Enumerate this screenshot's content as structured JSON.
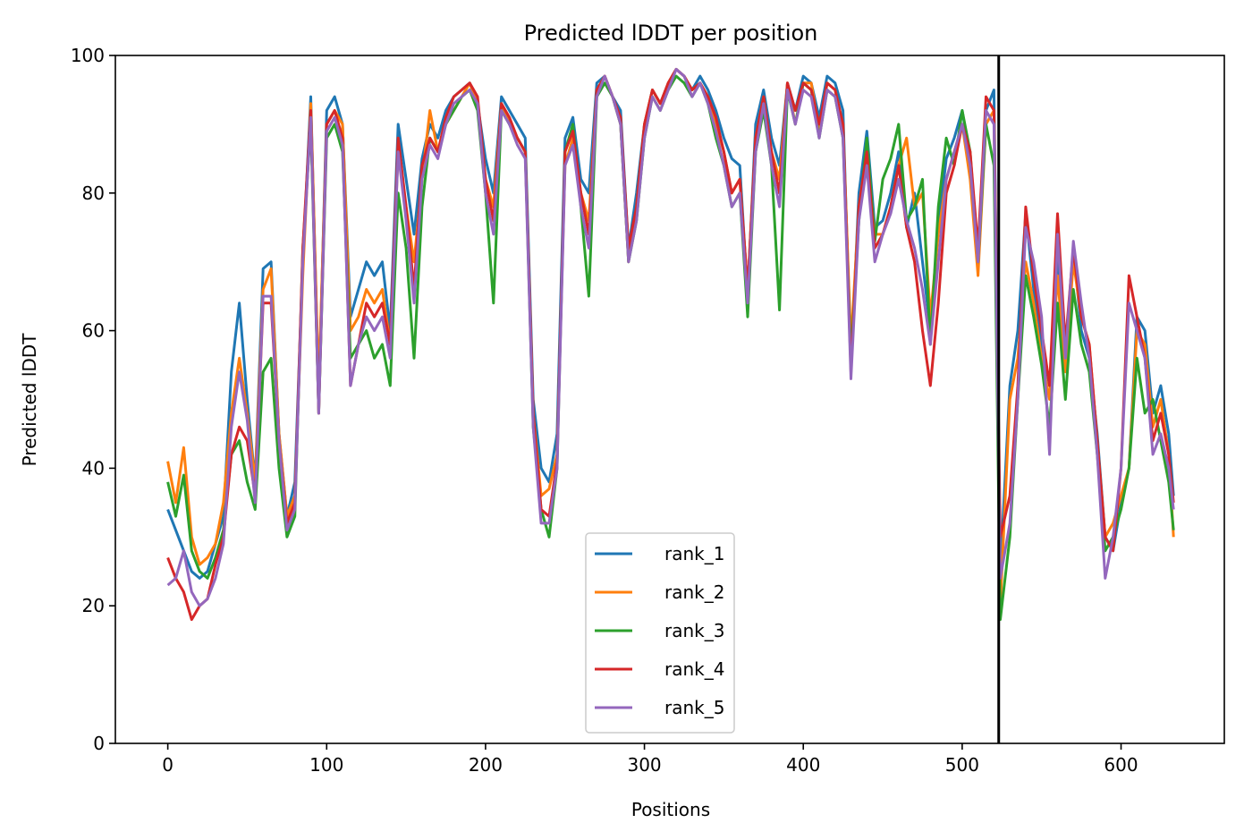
{
  "chart_data": {
    "type": "line",
    "title": "Predicted lDDT per position",
    "xlabel": "Positions",
    "ylabel": "Predicted lDDT",
    "xlim": [
      -33,
      665
    ],
    "ylim": [
      0,
      100
    ],
    "xticks": [
      0,
      100,
      200,
      300,
      400,
      500,
      600
    ],
    "yticks": [
      0,
      20,
      40,
      60,
      80,
      100
    ],
    "grid": false,
    "legend_position": "bottom-center",
    "vline": {
      "x": 523,
      "color": "#000000"
    },
    "x": [
      0,
      5,
      10,
      15,
      20,
      25,
      30,
      35,
      40,
      45,
      50,
      55,
      60,
      65,
      70,
      75,
      80,
      85,
      90,
      95,
      100,
      105,
      110,
      115,
      120,
      125,
      130,
      135,
      140,
      145,
      150,
      155,
      160,
      165,
      170,
      175,
      180,
      185,
      190,
      195,
      200,
      205,
      210,
      215,
      220,
      225,
      230,
      235,
      240,
      245,
      250,
      255,
      260,
      265,
      270,
      275,
      280,
      285,
      290,
      295,
      300,
      305,
      310,
      315,
      320,
      325,
      330,
      335,
      340,
      345,
      350,
      355,
      360,
      365,
      370,
      375,
      380,
      385,
      390,
      395,
      400,
      405,
      410,
      415,
      420,
      425,
      430,
      435,
      440,
      445,
      450,
      455,
      460,
      465,
      470,
      475,
      480,
      485,
      490,
      495,
      500,
      505,
      510,
      515,
      520,
      524,
      530,
      535,
      540,
      545,
      550,
      555,
      560,
      565,
      570,
      575,
      580,
      585,
      590,
      595,
      600,
      605,
      610,
      615,
      620,
      625,
      630,
      633
    ],
    "series": [
      {
        "name": "rank_1",
        "color": "#1f77b4",
        "values": [
          34,
          31,
          28,
          25,
          24,
          25,
          29,
          33,
          54,
          64,
          50,
          38,
          69,
          70,
          45,
          33,
          38,
          70,
          94,
          50,
          92,
          94,
          90,
          62,
          66,
          70,
          68,
          70,
          60,
          90,
          82,
          74,
          85,
          90,
          88,
          92,
          94,
          95,
          96,
          93,
          85,
          80,
          94,
          92,
          90,
          88,
          50,
          40,
          38,
          45,
          88,
          91,
          82,
          80,
          96,
          97,
          94,
          92,
          72,
          80,
          90,
          95,
          93,
          96,
          98,
          97,
          95,
          97,
          95,
          92,
          88,
          85,
          84,
          65,
          90,
          95,
          88,
          84,
          96,
          92,
          97,
          96,
          91,
          97,
          96,
          92,
          55,
          80,
          89,
          75,
          76,
          80,
          86,
          75,
          80,
          70,
          60,
          75,
          85,
          88,
          92,
          85,
          70,
          92,
          95,
          25,
          52,
          60,
          77,
          66,
          58,
          52,
          70,
          55,
          72,
          60,
          56,
          45,
          30,
          28,
          35,
          40,
          62,
          60,
          48,
          52,
          45,
          36
        ]
      },
      {
        "name": "rank_2",
        "color": "#ff7f0e",
        "values": [
          41,
          35,
          43,
          30,
          26,
          27,
          29,
          35,
          48,
          56,
          48,
          38,
          66,
          69,
          45,
          33,
          36,
          68,
          93,
          52,
          90,
          92,
          90,
          60,
          62,
          66,
          64,
          66,
          58,
          86,
          78,
          70,
          82,
          92,
          86,
          90,
          92,
          94,
          96,
          93,
          82,
          78,
          93,
          90,
          88,
          86,
          48,
          36,
          37,
          42,
          84,
          88,
          80,
          76,
          95,
          97,
          94,
          90,
          70,
          78,
          90,
          95,
          93,
          96,
          98,
          97,
          95,
          96,
          94,
          90,
          86,
          80,
          82,
          66,
          88,
          94,
          86,
          82,
          96,
          90,
          96,
          96,
          89,
          96,
          95,
          90,
          58,
          78,
          86,
          74,
          74,
          78,
          84,
          88,
          78,
          80,
          62,
          74,
          82,
          86,
          90,
          82,
          68,
          90,
          92,
          20,
          50,
          56,
          70,
          64,
          56,
          50,
          68,
          54,
          70,
          62,
          58,
          44,
          30,
          32,
          36,
          40,
          60,
          58,
          46,
          50,
          42,
          30
        ]
      },
      {
        "name": "rank_3",
        "color": "#2ca02c",
        "values": [
          38,
          33,
          39,
          28,
          25,
          24,
          27,
          31,
          42,
          44,
          38,
          34,
          54,
          56,
          40,
          30,
          33,
          72,
          90,
          48,
          88,
          90,
          86,
          56,
          58,
          60,
          56,
          58,
          52,
          80,
          72,
          56,
          78,
          88,
          86,
          90,
          92,
          94,
          95,
          92,
          80,
          64,
          92,
          90,
          88,
          86,
          46,
          34,
          30,
          40,
          86,
          90,
          78,
          65,
          94,
          96,
          94,
          90,
          70,
          76,
          88,
          94,
          92,
          95,
          97,
          96,
          94,
          96,
          93,
          88,
          84,
          78,
          80,
          62,
          86,
          92,
          84,
          63,
          95,
          90,
          96,
          95,
          88,
          95,
          94,
          88,
          56,
          76,
          88,
          73,
          82,
          85,
          90,
          76,
          78,
          82,
          58,
          78,
          88,
          84,
          92,
          86,
          70,
          90,
          84,
          18,
          30,
          50,
          68,
          62,
          55,
          46,
          64,
          50,
          66,
          58,
          54,
          42,
          28,
          30,
          34,
          40,
          56,
          48,
          50,
          44,
          38,
          31
        ]
      },
      {
        "name": "rank_4",
        "color": "#d62728",
        "values": [
          27,
          24,
          22,
          18,
          20,
          21,
          26,
          30,
          42,
          46,
          44,
          36,
          64,
          64,
          44,
          32,
          35,
          72,
          92,
          48,
          90,
          92,
          88,
          52,
          58,
          64,
          62,
          64,
          58,
          88,
          78,
          66,
          84,
          88,
          86,
          91,
          94,
          95,
          96,
          94,
          82,
          76,
          93,
          91,
          88,
          86,
          48,
          34,
          33,
          41,
          86,
          89,
          80,
          74,
          95,
          97,
          94,
          91,
          72,
          78,
          90,
          95,
          93,
          96,
          98,
          97,
          95,
          96,
          94,
          91,
          86,
          80,
          82,
          66,
          88,
          94,
          86,
          80,
          96,
          92,
          96,
          95,
          90,
          96,
          95,
          90,
          54,
          78,
          86,
          72,
          74,
          78,
          84,
          75,
          70,
          60,
          52,
          64,
          80,
          84,
          90,
          86,
          72,
          94,
          92,
          30,
          36,
          52,
          78,
          68,
          60,
          52,
          77,
          58,
          72,
          62,
          58,
          44,
          30,
          28,
          40,
          68,
          62,
          56,
          44,
          48,
          42,
          35
        ]
      },
      {
        "name": "rank_5",
        "color": "#9467bd",
        "values": [
          23,
          24,
          28,
          22,
          20,
          21,
          24,
          29,
          46,
          54,
          47,
          35,
          65,
          65,
          44,
          31,
          34,
          70,
          91,
          48,
          89,
          91,
          87,
          52,
          58,
          62,
          60,
          62,
          56,
          86,
          76,
          64,
          82,
          87,
          85,
          90,
          93,
          94,
          95,
          93,
          80,
          74,
          92,
          90,
          87,
          85,
          46,
          32,
          32,
          40,
          84,
          87,
          78,
          72,
          94,
          97,
          94,
          90,
          70,
          76,
          88,
          94,
          92,
          95,
          98,
          97,
          94,
          96,
          93,
          89,
          84,
          78,
          80,
          64,
          86,
          93,
          84,
          78,
          95,
          90,
          95,
          94,
          88,
          95,
          94,
          88,
          53,
          76,
          84,
          70,
          74,
          77,
          82,
          76,
          72,
          66,
          58,
          70,
          82,
          86,
          90,
          84,
          70,
          92,
          90,
          24,
          32,
          50,
          75,
          70,
          62,
          42,
          74,
          56,
          73,
          64,
          56,
          42,
          24,
          30,
          40,
          64,
          60,
          56,
          42,
          45,
          40,
          34
        ]
      }
    ]
  }
}
